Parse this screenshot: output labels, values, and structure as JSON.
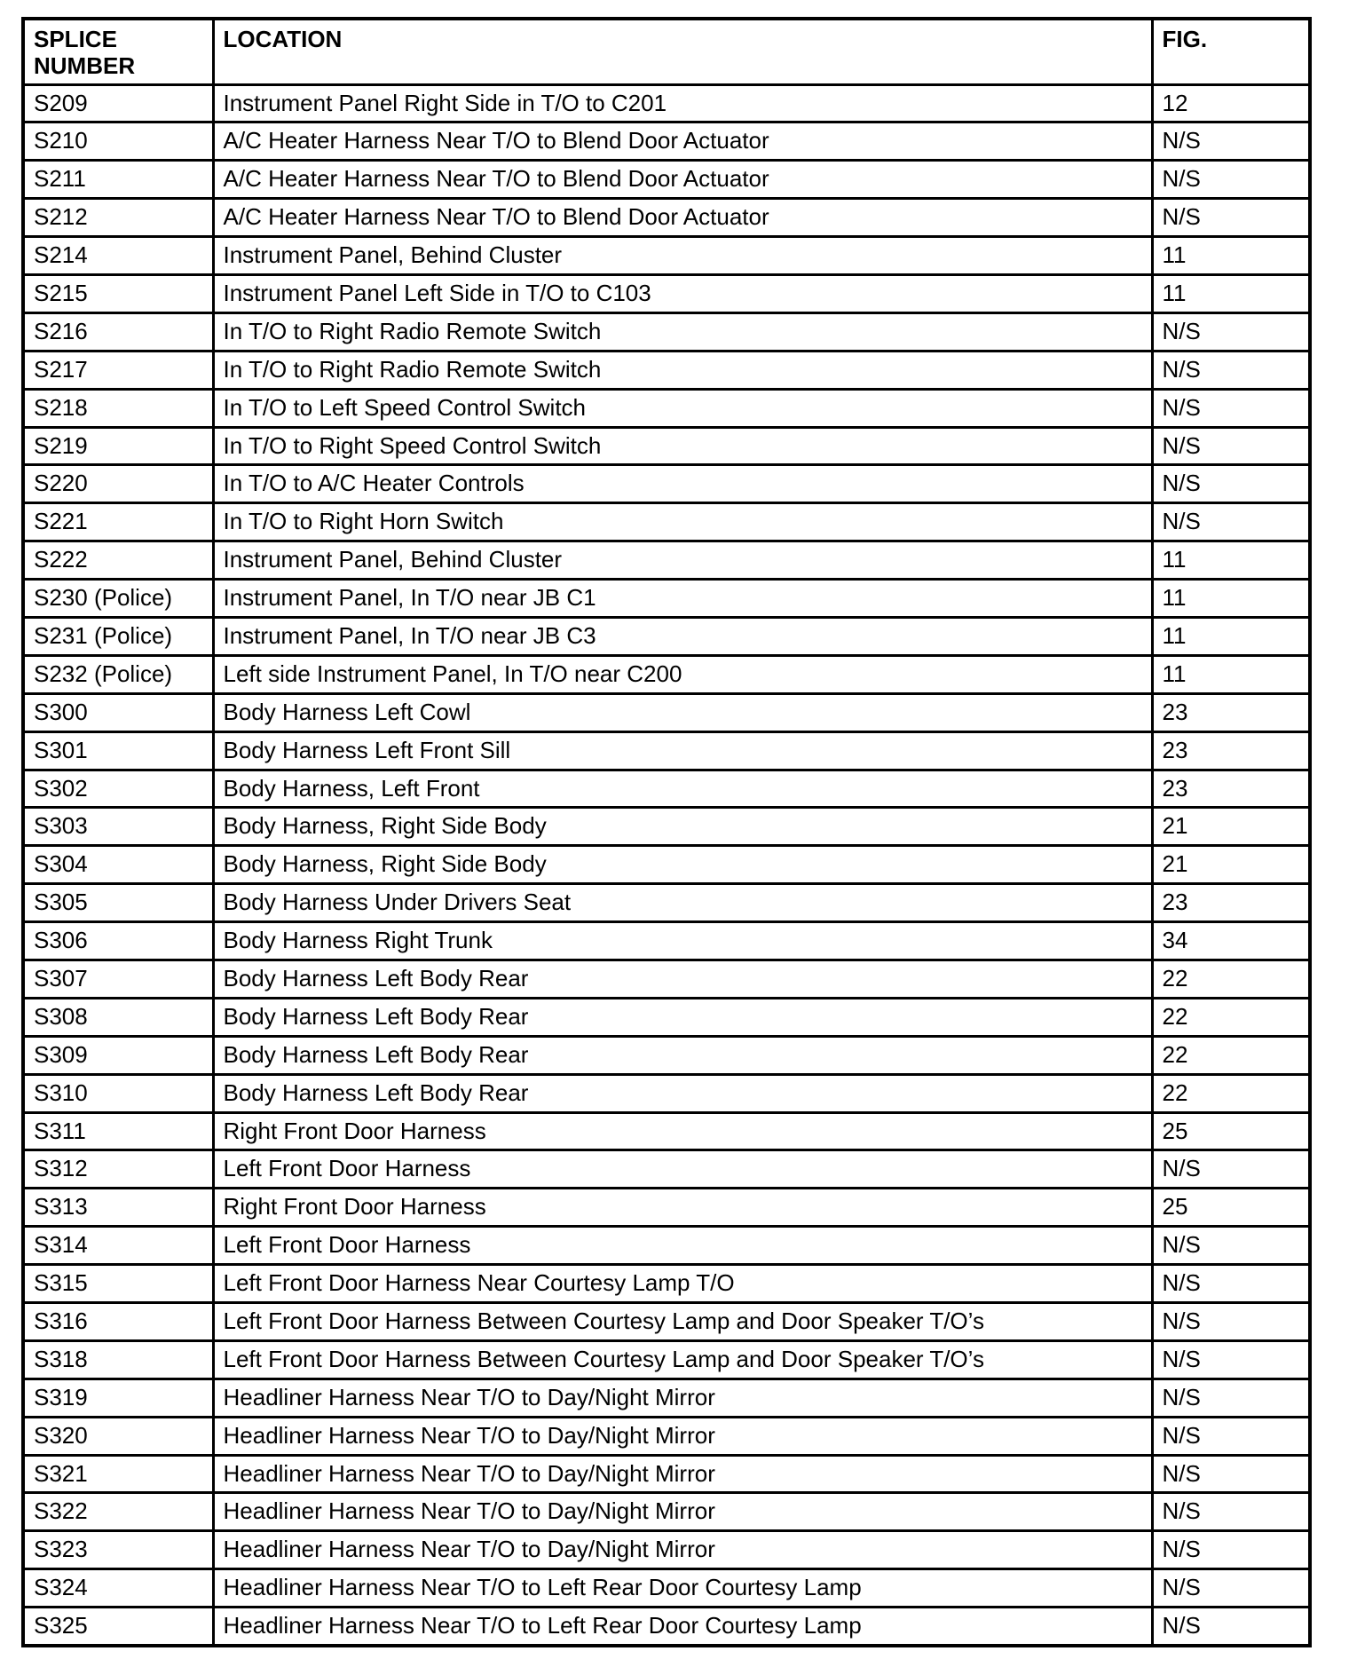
{
  "headers": {
    "splice": "SPLICE NUMBER",
    "location": "LOCATION",
    "fig": "FIG."
  },
  "rows": [
    {
      "splice": "S209",
      "location": "Instrument Panel Right Side in T/O to C201",
      "fig": "12"
    },
    {
      "splice": "S210",
      "location": "A/C Heater Harness Near T/O to Blend Door Actuator",
      "fig": "N/S"
    },
    {
      "splice": "S211",
      "location": "A/C Heater Harness Near T/O to Blend Door Actuator",
      "fig": "N/S"
    },
    {
      "splice": "S212",
      "location": "A/C Heater Harness Near T/O to Blend Door Actuator",
      "fig": "N/S"
    },
    {
      "splice": "S214",
      "location": "Instrument Panel, Behind Cluster",
      "fig": "11"
    },
    {
      "splice": "S215",
      "location": "Instrument Panel Left Side in T/O to C103",
      "fig": "11"
    },
    {
      "splice": "S216",
      "location": "In T/O to Right Radio Remote Switch",
      "fig": "N/S"
    },
    {
      "splice": "S217",
      "location": "In T/O to Right Radio Remote Switch",
      "fig": "N/S"
    },
    {
      "splice": "S218",
      "location": "In T/O to Left Speed Control Switch",
      "fig": "N/S"
    },
    {
      "splice": "S219",
      "location": "In T/O to Right Speed Control Switch",
      "fig": "N/S"
    },
    {
      "splice": "S220",
      "location": "In T/O to A/C Heater Controls",
      "fig": "N/S"
    },
    {
      "splice": "S221",
      "location": "In T/O to Right Horn Switch",
      "fig": "N/S"
    },
    {
      "splice": "S222",
      "location": "Instrument Panel, Behind Cluster",
      "fig": "11"
    },
    {
      "splice": "S230 (Police)",
      "location": "Instrument Panel, In T/O near JB C1",
      "fig": "11"
    },
    {
      "splice": "S231 (Police)",
      "location": "Instrument Panel, In T/O near JB C3",
      "fig": "11"
    },
    {
      "splice": "S232 (Police)",
      "location": "Left side Instrument Panel, In T/O near C200",
      "fig": "11"
    },
    {
      "splice": "S300",
      "location": "Body Harness Left Cowl",
      "fig": "23"
    },
    {
      "splice": "S301",
      "location": "Body Harness Left Front Sill",
      "fig": "23"
    },
    {
      "splice": "S302",
      "location": "Body Harness, Left Front",
      "fig": "23"
    },
    {
      "splice": "S303",
      "location": "Body Harness, Right Side Body",
      "fig": "21"
    },
    {
      "splice": "S304",
      "location": "Body Harness, Right Side Body",
      "fig": "21"
    },
    {
      "splice": "S305",
      "location": "Body Harness Under Drivers Seat",
      "fig": "23"
    },
    {
      "splice": "S306",
      "location": "Body Harness Right Trunk",
      "fig": "34"
    },
    {
      "splice": "S307",
      "location": "Body Harness Left Body Rear",
      "fig": "22"
    },
    {
      "splice": "S308",
      "location": "Body Harness Left Body Rear",
      "fig": "22"
    },
    {
      "splice": "S309",
      "location": "Body Harness Left Body Rear",
      "fig": "22"
    },
    {
      "splice": "S310",
      "location": "Body Harness Left Body Rear",
      "fig": "22"
    },
    {
      "splice": "S311",
      "location": "Right Front Door Harness",
      "fig": "25"
    },
    {
      "splice": "S312",
      "location": "Left Front Door Harness",
      "fig": "N/S"
    },
    {
      "splice": "S313",
      "location": "Right Front Door Harness",
      "fig": "25"
    },
    {
      "splice": "S314",
      "location": "Left Front Door Harness",
      "fig": "N/S"
    },
    {
      "splice": "S315",
      "location": "Left Front Door Harness Near Courtesy Lamp T/O",
      "fig": "N/S"
    },
    {
      "splice": "S316",
      "location": "Left Front Door Harness Between Courtesy Lamp and Door Speaker T/O’s",
      "fig": "N/S"
    },
    {
      "splice": "S318",
      "location": "Left Front Door Harness Between Courtesy Lamp and Door Speaker T/O’s",
      "fig": "N/S"
    },
    {
      "splice": "S319",
      "location": "Headliner Harness Near T/O to Day/Night Mirror",
      "fig": "N/S"
    },
    {
      "splice": "S320",
      "location": "Headliner Harness Near T/O to Day/Night Mirror",
      "fig": "N/S"
    },
    {
      "splice": "S321",
      "location": "Headliner Harness Near T/O to Day/Night Mirror",
      "fig": "N/S"
    },
    {
      "splice": "S322",
      "location": "Headliner Harness Near T/O to Day/Night Mirror",
      "fig": "N/S"
    },
    {
      "splice": "S323",
      "location": "Headliner Harness Near T/O to Day/Night Mirror",
      "fig": "N/S"
    },
    {
      "splice": "S324",
      "location": "Headliner Harness Near T/O to Left Rear Door Courtesy Lamp",
      "fig": "N/S"
    },
    {
      "splice": "S325",
      "location": "Headliner Harness Near T/O to Left Rear Door Courtesy Lamp",
      "fig": "N/S"
    }
  ]
}
